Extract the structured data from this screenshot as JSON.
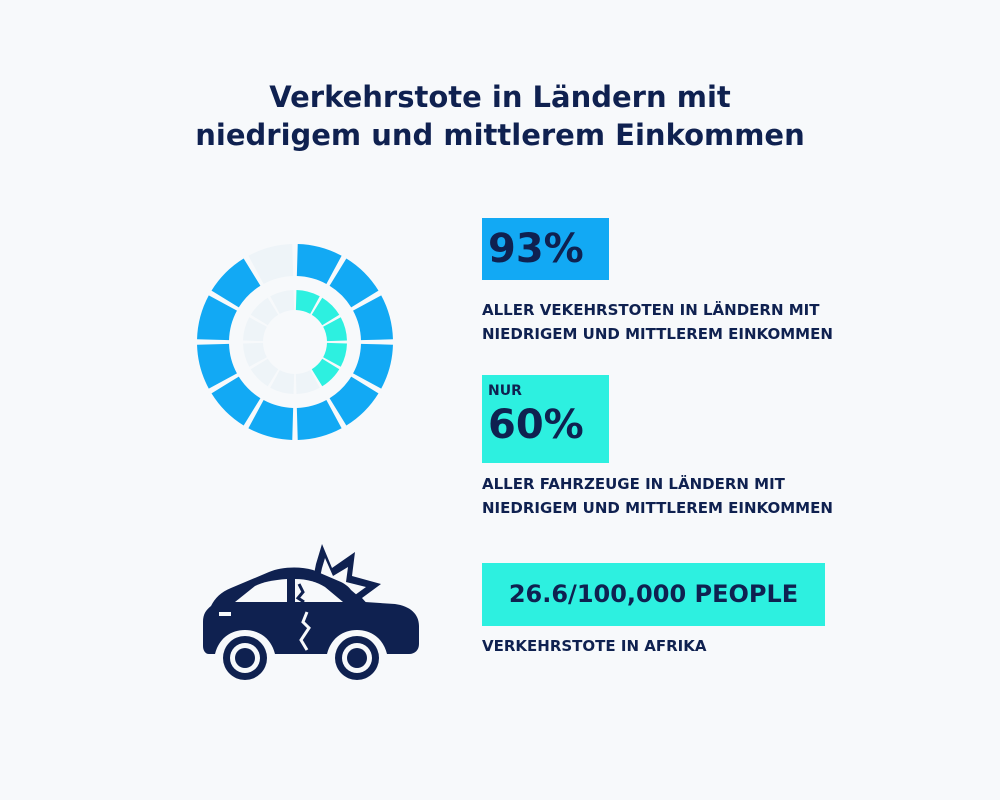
{
  "title": {
    "line1": "Verkehrstote in Ländern mit",
    "line2": "niedrigem und mittlerem Einkommen"
  },
  "colors": {
    "navy": "#0f2150",
    "blue": "#12a9f4",
    "turquoise": "#2df0e0",
    "background": "#f7f9fb"
  },
  "donut": {
    "outer_segments": 12,
    "outer_filled_segments": 11,
    "inner_segments": 12,
    "inner_filled_segments": 5
  },
  "stats": [
    {
      "prefix": "",
      "value": "93%",
      "desc_line1": "ALLER VEKEHRSTOTEN IN LÄNDERN MIT",
      "desc_line2": "NIEDRIGEM UND MITTLEREM EINKOMMEN"
    },
    {
      "prefix": "NUR",
      "value": "60%",
      "desc_line1": "ALLER FAHRZEUGE IN LÄNDERN MIT",
      "desc_line2": "NIEDRIGEM UND MITTLEREM EINKOMMEN"
    },
    {
      "prefix": "",
      "value": "26.6/100,000 PEOPLE",
      "desc_line1": "VERKEHRSTOTE IN AFRIKA",
      "desc_line2": ""
    }
  ],
  "icons": {
    "donut": "segmented-donut-icon",
    "car": "car-crash-icon"
  }
}
